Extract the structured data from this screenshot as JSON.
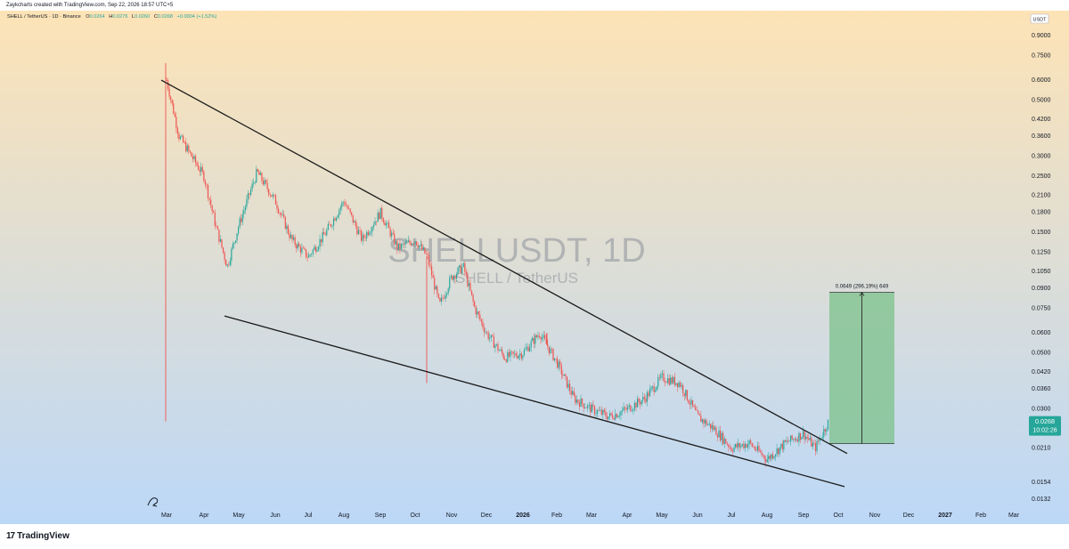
{
  "header": {
    "attribution": "Zaykcharts created with TradingView.com, Sep 22, 2026 18:57 UTC+5"
  },
  "legend": {
    "symbol": "SHELL / TetherUS · 1D · Binance",
    "o_label": "O",
    "o_value": "0.0264",
    "h_label": "H",
    "h_value": "0.0276",
    "l_label": "L",
    "l_value": "0.0260",
    "c_label": "C",
    "c_value": "0.0268",
    "change": "+0.0004 (+1.52%)"
  },
  "watermark": {
    "ticker": "SHELLUSDT, 1D",
    "name": "SHELL / TetherUS"
  },
  "currency_button": "USDT",
  "price_label": {
    "value": "0.0268",
    "countdown": "10:02:26",
    "color": "#26a69a"
  },
  "measure_label": "0.0649 (296.19%) 649",
  "footer": {
    "brand": "TradingView"
  },
  "colors": {
    "up": "#26a69a",
    "down": "#ef5350",
    "trendline": "#1a1a1a",
    "measure_fill": "#7cc18b",
    "bg_top": "#fde3b6",
    "bg_bottom": "#bcd8f7"
  },
  "chart_data": {
    "type": "candlestick",
    "title": "SHELLUSDT, 1D",
    "y_scale": "log",
    "y_ticks": [
      "0.9000",
      "0.7500",
      "0.6000",
      "0.5000",
      "0.4200",
      "0.3600",
      "0.3000",
      "0.2500",
      "0.2100",
      "0.1800",
      "0.1500",
      "0.1250",
      "0.1050",
      "0.0900",
      "0.0750",
      "0.0600",
      "0.0500",
      "0.0420",
      "0.0360",
      "0.0300",
      "0.0210",
      "0.0154",
      "0.0132"
    ],
    "x_ticks": [
      "Mar",
      "Apr",
      "May",
      "Jun",
      "Jul",
      "Aug",
      "Sep",
      "Oct",
      "Nov",
      "Dec",
      "2026",
      "Feb",
      "Mar",
      "Apr",
      "May",
      "Jun",
      "Jul",
      "Aug",
      "Sep",
      "Oct",
      "Nov",
      "Dec",
      "2027",
      "Feb",
      "Mar"
    ],
    "bold_x_ticks": [
      "2026",
      "2027"
    ],
    "ylim": [
      0.0125,
      1.05
    ],
    "price_path": [
      [
        "Mar",
        0.6
      ],
      [
        "Mar",
        0.36
      ],
      [
        "Mar",
        0.3
      ],
      [
        "Apr",
        0.25
      ],
      [
        "Apr",
        0.16
      ],
      [
        "Apr",
        0.11
      ],
      [
        "May",
        0.16
      ],
      [
        "May",
        0.26
      ],
      [
        "Jun",
        0.2
      ],
      [
        "Jun",
        0.14
      ],
      [
        "Jul",
        0.12
      ],
      [
        "Jul",
        0.15
      ],
      [
        "Aug",
        0.2
      ],
      [
        "Aug",
        0.14
      ],
      [
        "Sep",
        0.18
      ],
      [
        "Sep",
        0.13
      ],
      [
        "Oct",
        0.14
      ],
      [
        "Oct",
        0.12
      ],
      [
        "Oct",
        0.077
      ],
      [
        "Nov",
        0.1
      ],
      [
        "Nov",
        0.11
      ],
      [
        "Nov",
        0.075
      ],
      [
        "Dec",
        0.06
      ],
      [
        "Dec",
        0.048
      ],
      [
        "2026",
        0.05
      ],
      [
        "2026",
        0.06
      ],
      [
        "Feb",
        0.046
      ],
      [
        "Feb",
        0.033
      ],
      [
        "Mar",
        0.03
      ],
      [
        "Mar",
        0.028
      ],
      [
        "Apr",
        0.03
      ],
      [
        "Apr",
        0.033
      ],
      [
        "May",
        0.04
      ],
      [
        "May",
        0.038
      ],
      [
        "Jun",
        0.028
      ],
      [
        "Jun",
        0.025
      ],
      [
        "Jul",
        0.021
      ],
      [
        "Jul",
        0.022
      ],
      [
        "Aug",
        0.019
      ],
      [
        "Aug",
        0.022
      ],
      [
        "Sep",
        0.024
      ],
      [
        "Sep",
        0.021
      ],
      [
        "Sep",
        0.0268
      ]
    ],
    "spikes": [
      {
        "x": "Mar",
        "high": 0.7
      },
      {
        "x": "Oct",
        "low": 0.038
      },
      {
        "x": "Feb",
        "high": 0.06
      }
    ],
    "trendlines": [
      {
        "name": "upper",
        "from": [
          "Mar",
          0.6
        ],
        "to": [
          "Oct",
          0.02
        ]
      },
      {
        "name": "lower",
        "from": [
          "Apr",
          0.07
        ],
        "to": [
          "Oct",
          0.0148
        ]
      }
    ],
    "measure": {
      "from_price": 0.0219,
      "to_price": 0.0868,
      "change": 0.0649,
      "percent": 296.19
    },
    "current_price": 0.0268
  }
}
